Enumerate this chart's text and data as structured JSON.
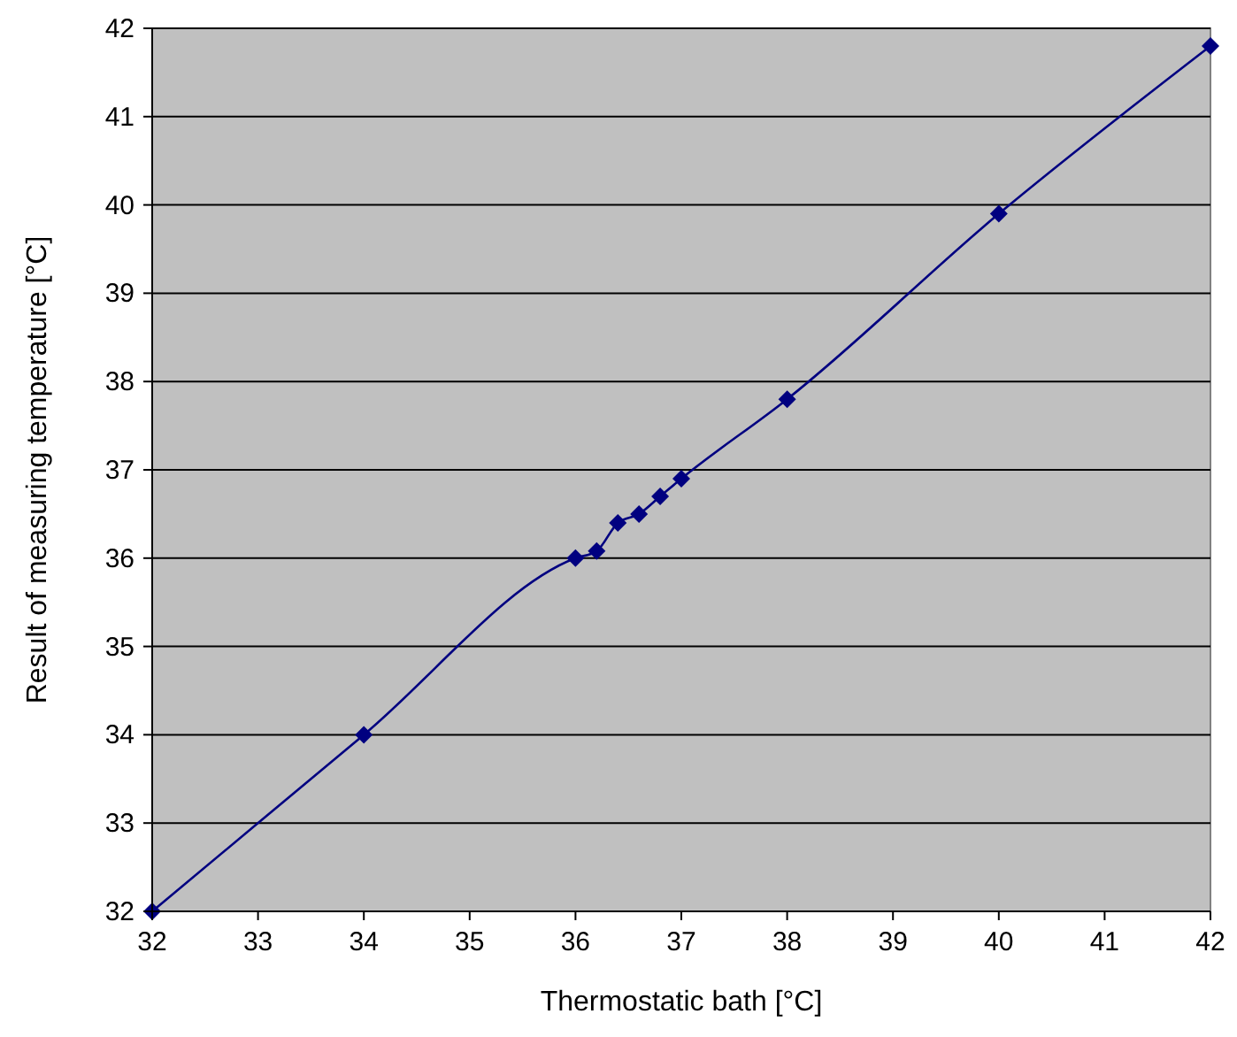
{
  "chart_data": {
    "type": "line",
    "xlabel": "Thermostatic bath [°C]",
    "ylabel": "Result of measuring temperature [°C]",
    "xlim": [
      32,
      42
    ],
    "xticks": [
      32,
      33,
      34,
      35,
      36,
      37,
      38,
      39,
      40,
      41,
      42
    ],
    "ylim": [
      32,
      42
    ],
    "yticks": [
      32,
      33,
      34,
      35,
      36,
      37,
      38,
      39,
      40,
      41,
      42
    ],
    "grid": "y",
    "marker": "diamond",
    "line_style": "solid",
    "series": [
      {
        "color": "#000080",
        "x": [
          32,
          34,
          36,
          36.2,
          36.4,
          36.6,
          36.8,
          37,
          38,
          40,
          42
        ],
        "values": [
          32,
          34,
          36,
          36.08,
          36.4,
          36.5,
          36.7,
          36.9,
          37.8,
          39.9,
          41.8
        ]
      }
    ]
  }
}
